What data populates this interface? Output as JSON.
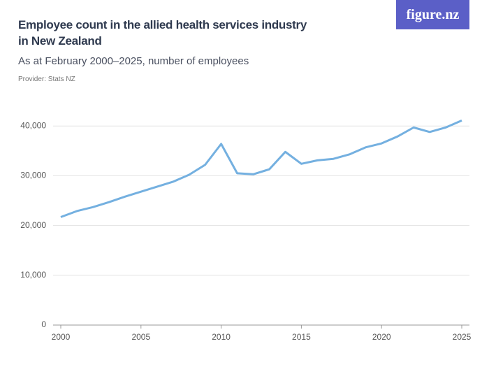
{
  "chart_data": {
    "type": "line",
    "title": [
      "Employee count in the allied health services industry",
      "in New Zealand"
    ],
    "subtitle": "As at February 2000–2025, number of employees",
    "provider": "Provider: Stats NZ",
    "logo": "figure.nz",
    "x": [
      2000,
      2001,
      2002,
      2003,
      2004,
      2005,
      2006,
      2007,
      2008,
      2009,
      2010,
      2011,
      2012,
      2013,
      2014,
      2015,
      2016,
      2017,
      2018,
      2019,
      2020,
      2021,
      2022,
      2023,
      2024,
      2025
    ],
    "series": [
      {
        "color": "#74b0e0",
        "values": [
          21700,
          22900,
          23700,
          24700,
          25800,
          26800,
          27800,
          28800,
          30200,
          32200,
          36400,
          30500,
          30300,
          31300,
          34800,
          32400,
          33100,
          33400,
          34300,
          35700,
          36500,
          37900,
          39700,
          38800,
          39700,
          41100
        ]
      }
    ],
    "xlim": [
      2000,
      2025
    ],
    "xticks": [
      2000,
      2005,
      2010,
      2015,
      2020,
      2025
    ],
    "ylim": [
      0,
      42000
    ],
    "yticks": [
      0,
      {
        "value": 10000,
        "label": "10,000"
      },
      {
        "value": 20000,
        "label": "20,000"
      },
      {
        "value": 30000,
        "label": "30,000"
      },
      {
        "value": 40000,
        "label": "40,000"
      }
    ],
    "grid": true
  }
}
